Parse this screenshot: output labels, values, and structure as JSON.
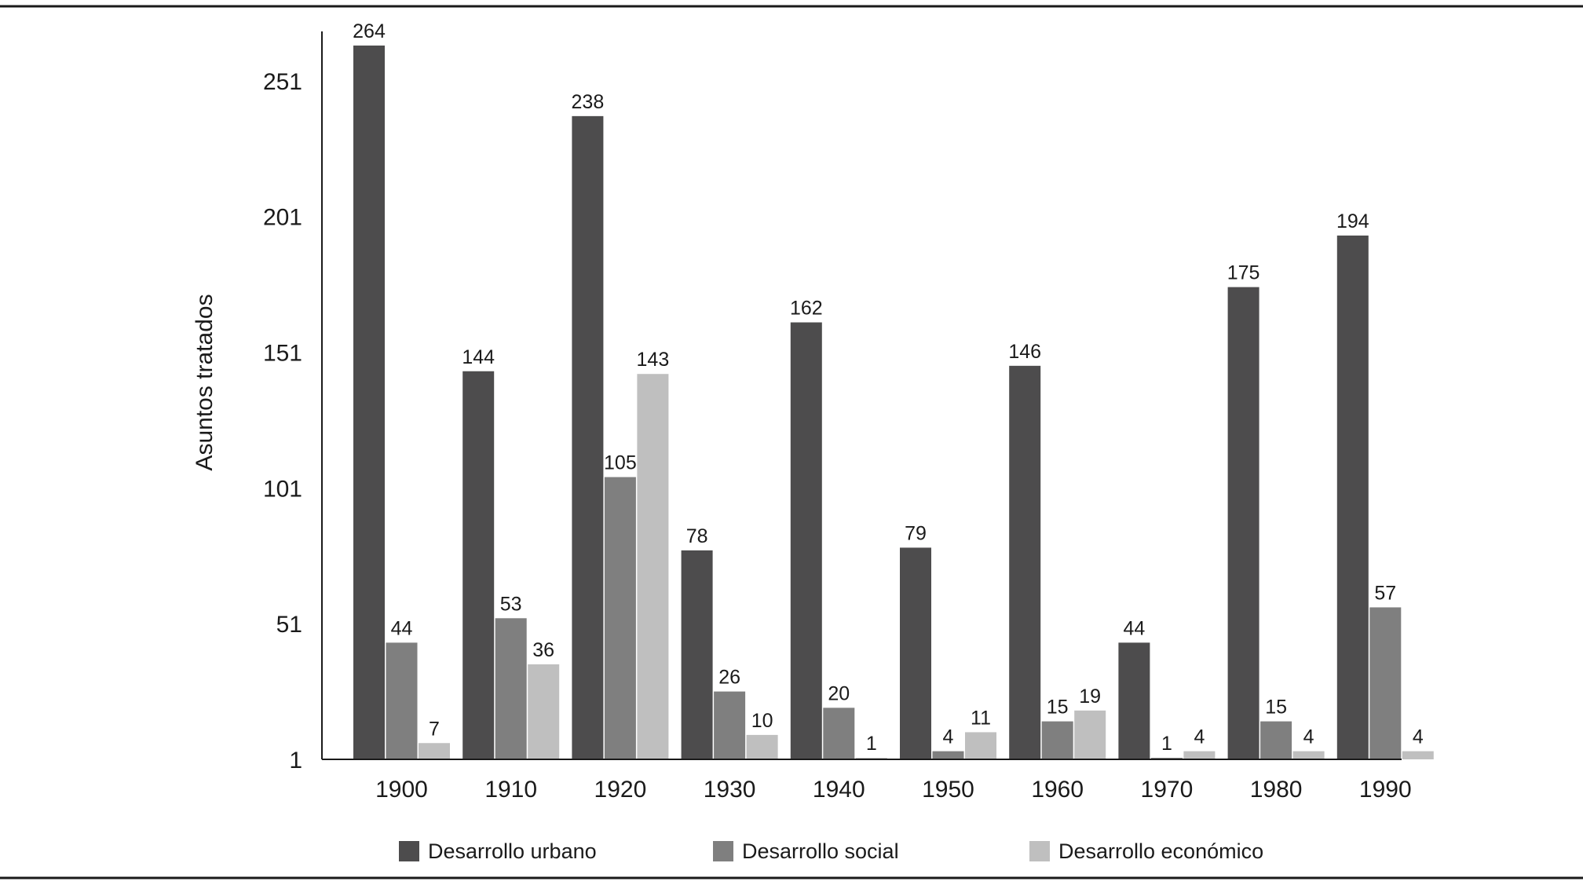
{
  "chart_data": {
    "type": "bar",
    "title": "",
    "xlabel": "",
    "ylabel": "Asuntos tratados",
    "categories": [
      "1900",
      "1910",
      "1920",
      "1930",
      "1940",
      "1950",
      "1960",
      "1970",
      "1980",
      "1990"
    ],
    "series": [
      {
        "name": "Desarrollo urbano",
        "color": "#4d4c4d",
        "values": [
          264,
          144,
          238,
          78,
          162,
          79,
          146,
          44,
          175,
          194
        ]
      },
      {
        "name": "Desarrollo social",
        "color": "#7f7f7f",
        "values": [
          44,
          53,
          105,
          26,
          20,
          4,
          15,
          1,
          15,
          57
        ]
      },
      {
        "name": "Desarrollo económico",
        "color": "#bfbfbf",
        "values": [
          7,
          36,
          143,
          10,
          1,
          11,
          19,
          4,
          4,
          4
        ]
      }
    ],
    "yticks": [
      1,
      51,
      101,
      151,
      201,
      251
    ],
    "ylim": [
      1,
      264
    ],
    "grid": false,
    "legend": "bottom"
  }
}
